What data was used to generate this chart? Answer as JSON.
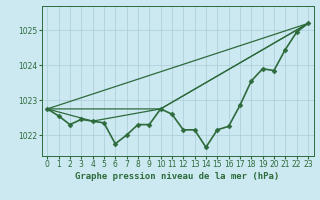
{
  "xlabel": "Graphe pression niveau de la mer (hPa)",
  "bg_color": "#cce8f0",
  "grid_color": "#aaccd8",
  "line_color": "#2d6b3c",
  "marker_color": "#2d6b3c",
  "ylim": [
    1021.4,
    1025.7
  ],
  "xlim": [
    -0.5,
    23.5
  ],
  "yticks": [
    1022,
    1023,
    1024,
    1025
  ],
  "xticks": [
    0,
    1,
    2,
    3,
    4,
    5,
    6,
    7,
    8,
    9,
    10,
    11,
    12,
    13,
    14,
    15,
    16,
    17,
    18,
    19,
    20,
    21,
    22,
    23
  ],
  "main_x": [
    0,
    1,
    2,
    3,
    4,
    5,
    6,
    7,
    8,
    9,
    10,
    11,
    12,
    13,
    14,
    15,
    16,
    17,
    18,
    19,
    20,
    21,
    22,
    23
  ],
  "main_y": [
    1022.75,
    1022.55,
    1022.3,
    1022.45,
    1022.4,
    1022.35,
    1021.75,
    1022.0,
    1022.3,
    1022.3,
    1022.75,
    1022.6,
    1022.15,
    1022.15,
    1021.65,
    1022.15,
    1022.25,
    1022.85,
    1023.55,
    1023.9,
    1023.85,
    1024.45,
    1024.95,
    1025.2
  ],
  "trend1_x": [
    0,
    23
  ],
  "trend1_y": [
    1022.75,
    1025.2
  ],
  "trend2_x": [
    0,
    10,
    23
  ],
  "trend2_y": [
    1022.75,
    1022.75,
    1025.2
  ],
  "trend3_x": [
    0,
    4,
    10,
    23
  ],
  "trend3_y": [
    1022.75,
    1022.4,
    1022.75,
    1025.2
  ],
  "xlabel_fontsize": 6.5,
  "tick_fontsize": 5.5,
  "main_lw": 1.2,
  "trend_lw": 0.9,
  "marker": "D",
  "markersize": 2.5
}
